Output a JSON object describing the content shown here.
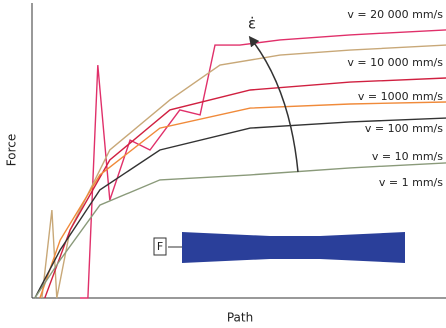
{
  "chart_data": {
    "type": "line",
    "x_label": "Path",
    "y_label": "Force",
    "annotations": [
      "ε̇",
      "F"
    ],
    "xlim": [
      0,
      100
    ],
    "ylim": [
      0,
      100
    ],
    "series": [
      {
        "name": "v = 20 000 mm/s",
        "color": "#e0306a",
        "x": [
          11.6,
          13.5,
          15.9,
          18.8,
          23.7,
          28.5,
          35.7,
          40.6,
          44.2,
          50.2,
          59.9,
          76.8,
          100
        ],
        "values": [
          0,
          0,
          79.5,
          33.4,
          53.9,
          50.5,
          64.2,
          62.5,
          86.3,
          86.3,
          88.1,
          89.8,
          91.5
        ]
      },
      {
        "name": "v = 10 000 mm/s",
        "color": "#c8a878",
        "x": [
          2.4,
          4.8,
          6.0,
          9.2,
          18.8,
          33.3,
          45.4,
          59.9,
          76.8,
          100
        ],
        "values": [
          0,
          30,
          0,
          23.2,
          50.5,
          67.6,
          79.5,
          82.9,
          84.6,
          86.3
        ]
      },
      {
        "name": "v = 1000 mm/s",
        "color": "#d02040",
        "x": [
          3.1,
          9.2,
          18.8,
          33.3,
          52.7,
          76.8,
          100
        ],
        "values": [
          0,
          23.2,
          47.1,
          64.2,
          71,
          73.7,
          75.1
        ]
      },
      {
        "name": "v = 100 mm/s",
        "color": "#f08a3a",
        "x": [
          1.9,
          6.8,
          16.4,
          30.9,
          52.7,
          76.8,
          100
        ],
        "values": [
          0,
          19.8,
          42,
          58,
          64.8,
          66.2,
          66.9
        ]
      },
      {
        "name": "v = 10 mm/s",
        "color": "#333333",
        "x": [
          0.7,
          6.8,
          16.4,
          30.9,
          52.7,
          76.8,
          100
        ],
        "values": [
          0,
          16.4,
          36.9,
          50.5,
          58,
          60.1,
          61.4
        ]
      },
      {
        "name": "v = 1 mm/s",
        "color": "#8a9a7a",
        "x": [
          0.7,
          6.8,
          16.4,
          30.9,
          52.7,
          76.8,
          100
        ],
        "values": [
          0,
          13,
          31.7,
          40.3,
          42,
          44.4,
          46.1
        ]
      }
    ]
  }
}
